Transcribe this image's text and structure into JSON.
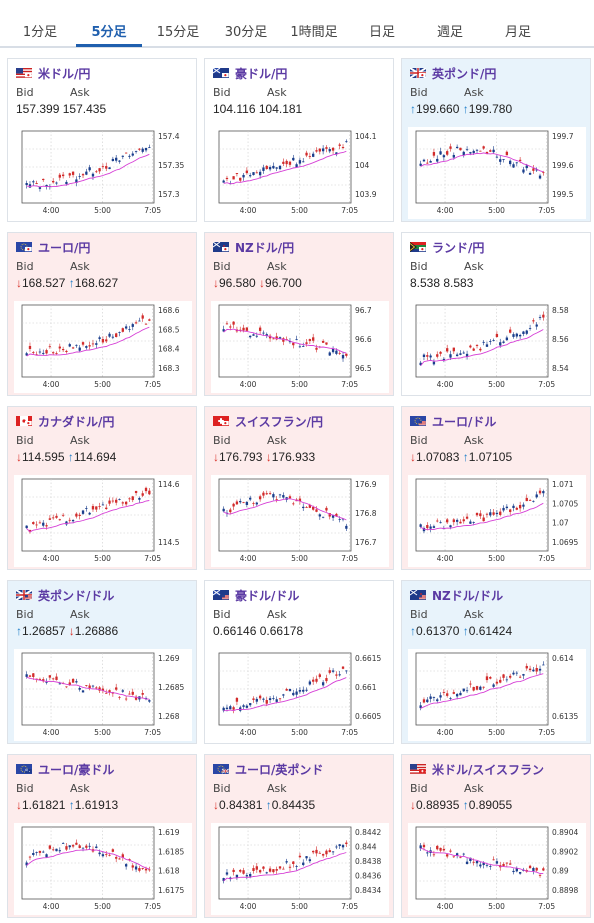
{
  "tabs": [
    {
      "label": "1分足"
    },
    {
      "label": "5分足",
      "active": true
    },
    {
      "label": "15分足"
    },
    {
      "label": "30分足"
    },
    {
      "label": "1時間足"
    },
    {
      "label": "日足"
    },
    {
      "label": "週足"
    },
    {
      "label": "月足"
    }
  ],
  "labels": {
    "bid": "Bid",
    "ask": "Ask"
  },
  "colors": {
    "accent": "#1f5fae",
    "up_candle": "#1a3e8c",
    "down_candle": "#d22b2b",
    "ma": "#d63fd6",
    "up_arrow": "#1f7ec9",
    "down_arrow": "#d9342b",
    "pair_text": "#5b3aa3"
  },
  "x_ticks": [
    "4:00",
    "5:00",
    "7:05"
  ],
  "cards": [
    {
      "pair": "米ドル/円",
      "flag": "us-jp-flag",
      "bid": "157.399",
      "ask": "157.435",
      "bid_dir": "",
      "ask_dir": "",
      "state": "neutral",
      "yticks": [
        "157.4",
        "157.35",
        "157.3"
      ]
    },
    {
      "pair": "豪ドル/円",
      "flag": "au-jp-flag",
      "bid": "104.116",
      "ask": "104.181",
      "bid_dir": "",
      "ask_dir": "",
      "state": "neutral",
      "yticks": [
        "104.1",
        "104",
        "103.9"
      ]
    },
    {
      "pair": "英ポンド/円",
      "flag": "uk-jp-flag",
      "bid": "199.660",
      "ask": "199.780",
      "bid_dir": "↑",
      "ask_dir": "↑",
      "state": "up",
      "yticks": [
        "199.7",
        "199.6",
        "199.5"
      ]
    },
    {
      "pair": "ユーロ/円",
      "flag": "eu-jp-flag",
      "bid": "168.527",
      "ask": "168.627",
      "bid_dir": "↓",
      "ask_dir": "↑",
      "state": "down",
      "yticks": [
        "168.6",
        "168.5",
        "168.4",
        "168.3"
      ]
    },
    {
      "pair": "NZドル/円",
      "flag": "nz-jp-flag",
      "bid": "96.580",
      "ask": "96.700",
      "bid_dir": "↓",
      "ask_dir": "↓",
      "state": "down",
      "yticks": [
        "96.7",
        "96.6",
        "96.5"
      ]
    },
    {
      "pair": "ランド/円",
      "flag": "za-jp-flag",
      "bid": "8.538",
      "ask": "8.583",
      "bid_dir": "",
      "ask_dir": "",
      "state": "neutral",
      "yticks": [
        "8.58",
        "8.56",
        "8.54"
      ]
    },
    {
      "pair": "カナダドル/円",
      "flag": "ca-jp-flag",
      "bid": "114.595",
      "ask": "114.694",
      "bid_dir": "↓",
      "ask_dir": "↑",
      "state": "down",
      "yticks": [
        "114.6",
        "114.5"
      ]
    },
    {
      "pair": "スイスフラン/円",
      "flag": "ch-jp-flag",
      "bid": "176.793",
      "ask": "176.933",
      "bid_dir": "↓",
      "ask_dir": "↓",
      "state": "down",
      "yticks": [
        "176.9",
        "176.8",
        "176.7"
      ]
    },
    {
      "pair": "ユーロ/ドル",
      "flag": "eu-us-flag",
      "bid": "1.07083",
      "ask": "1.07105",
      "bid_dir": "↓",
      "ask_dir": "↑",
      "state": "down",
      "yticks": [
        "1.071",
        "1.0705",
        "1.07",
        "1.0695"
      ]
    },
    {
      "pair": "英ポンド/ドル",
      "flag": "uk-us-flag",
      "bid": "1.26857",
      "ask": "1.26886",
      "bid_dir": "↑",
      "ask_dir": "↓",
      "state": "up",
      "yticks": [
        "1.269",
        "1.2685",
        "1.268"
      ]
    },
    {
      "pair": "豪ドル/ドル",
      "flag": "au-us-flag",
      "bid": "0.66146",
      "ask": "0.66178",
      "bid_dir": "",
      "ask_dir": "",
      "state": "neutral",
      "yticks": [
        "0.6615",
        "0.661",
        "0.6605"
      ]
    },
    {
      "pair": "NZドル/ドル",
      "flag": "nz-us-flag",
      "bid": "0.61370",
      "ask": "0.61424",
      "bid_dir": "↑",
      "ask_dir": "↑",
      "state": "up",
      "yticks": [
        "0.614",
        "0.6135"
      ]
    },
    {
      "pair": "ユーロ/豪ドル",
      "flag": "eu-au-flag",
      "bid": "1.61821",
      "ask": "1.61913",
      "bid_dir": "↓",
      "ask_dir": "↑",
      "state": "down",
      "yticks": [
        "1.619",
        "1.6185",
        "1.618",
        "1.6175"
      ]
    },
    {
      "pair": "ユーロ/英ポンド",
      "flag": "eu-uk-flag",
      "bid": "0.84381",
      "ask": "0.84435",
      "bid_dir": "↓",
      "ask_dir": "↑",
      "state": "down",
      "yticks": [
        "0.8442",
        "0.844",
        "0.8438",
        "0.8436",
        "0.8434"
      ]
    },
    {
      "pair": "米ドル/スイスフラン",
      "flag": "us-ch-flag",
      "bid": "0.88935",
      "ask": "0.89055",
      "bid_dir": "↓",
      "ask_dir": "↑",
      "state": "down",
      "yticks": [
        "0.8904",
        "0.8902",
        "0.89",
        "0.8898"
      ]
    }
  ]
}
